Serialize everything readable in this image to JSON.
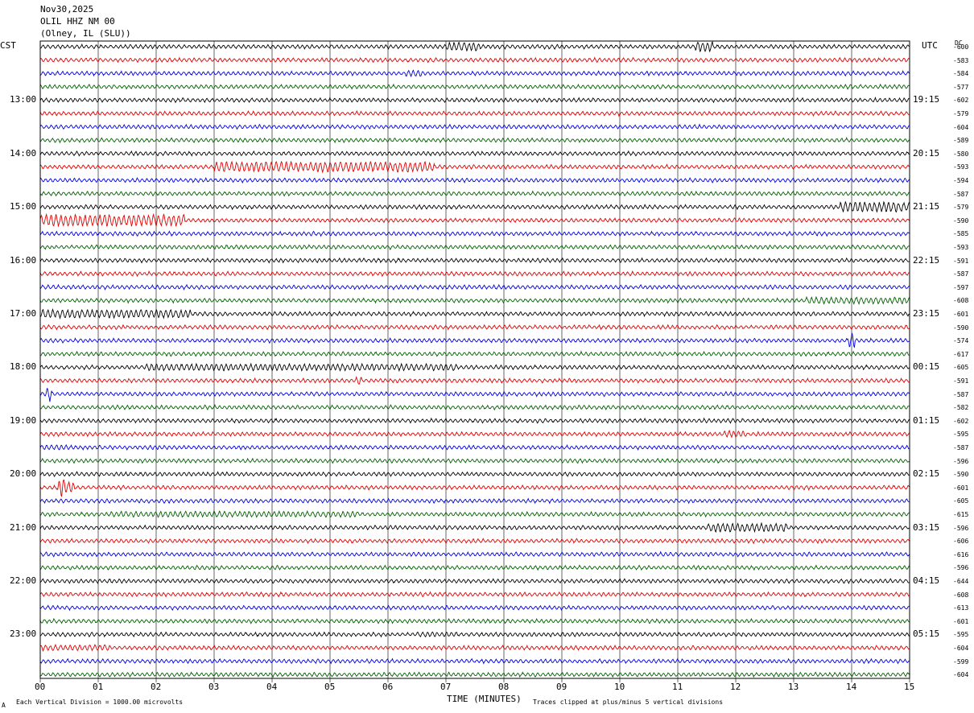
{
  "header": {
    "date": "Nov30,2025",
    "station": "OLIL HHZ NM 00",
    "location": "(Olney, IL (SLU))"
  },
  "left_zone": "CST",
  "right_zone": "UTC",
  "dc_label": "DC",
  "footer": {
    "left_note": "Each Vertical Division = 1000.00 microvolts",
    "xlabel": "TIME (MINUTES)",
    "right_note": "Traces clipped at plus/minus 5 vertical divisions",
    "corner_mark": "A"
  },
  "chart_data": {
    "type": "line",
    "title": "OLIL HHZ NM 00",
    "xlabel": "TIME (MINUTES)",
    "xlim": [
      0,
      15
    ],
    "x_ticks": [
      "00",
      "01",
      "02",
      "03",
      "04",
      "05",
      "06",
      "07",
      "08",
      "09",
      "10",
      "11",
      "12",
      "13",
      "14",
      "15"
    ],
    "grid": true,
    "trace_colors": [
      "#000000",
      "#e00000",
      "#0000e0",
      "#006000"
    ],
    "left_hour_labels": [
      "13:00",
      "14:00",
      "15:00",
      "16:00",
      "17:00",
      "18:00",
      "19:00",
      "20:00",
      "21:00",
      "22:00",
      "23:00"
    ],
    "right_hour_labels": [
      "19:15",
      "20:15",
      "21:15",
      "22:15",
      "23:15",
      "00:15",
      "01:15",
      "02:15",
      "03:15",
      "04:15",
      "05:15"
    ],
    "dc_offsets": [
      "-600",
      "-583",
      "-584",
      "-577",
      "-602",
      "-579",
      "-604",
      "-589",
      "-580",
      "-593",
      "-594",
      "-587",
      "-579",
      "-590",
      "-585",
      "-593",
      "-591",
      "-587",
      "-597",
      "-608",
      "-601",
      "-590",
      "-574",
      "-617",
      "-605",
      "-591",
      "-587",
      "-582",
      "-602",
      "-595",
      "-587",
      "-596",
      "-590",
      "-601",
      "-605",
      "-615",
      "-596",
      "-606",
      "-616",
      "-596",
      "-644",
      "-608",
      "-613",
      "-601",
      "-595",
      "-604",
      "-599",
      "-604"
    ]
  }
}
